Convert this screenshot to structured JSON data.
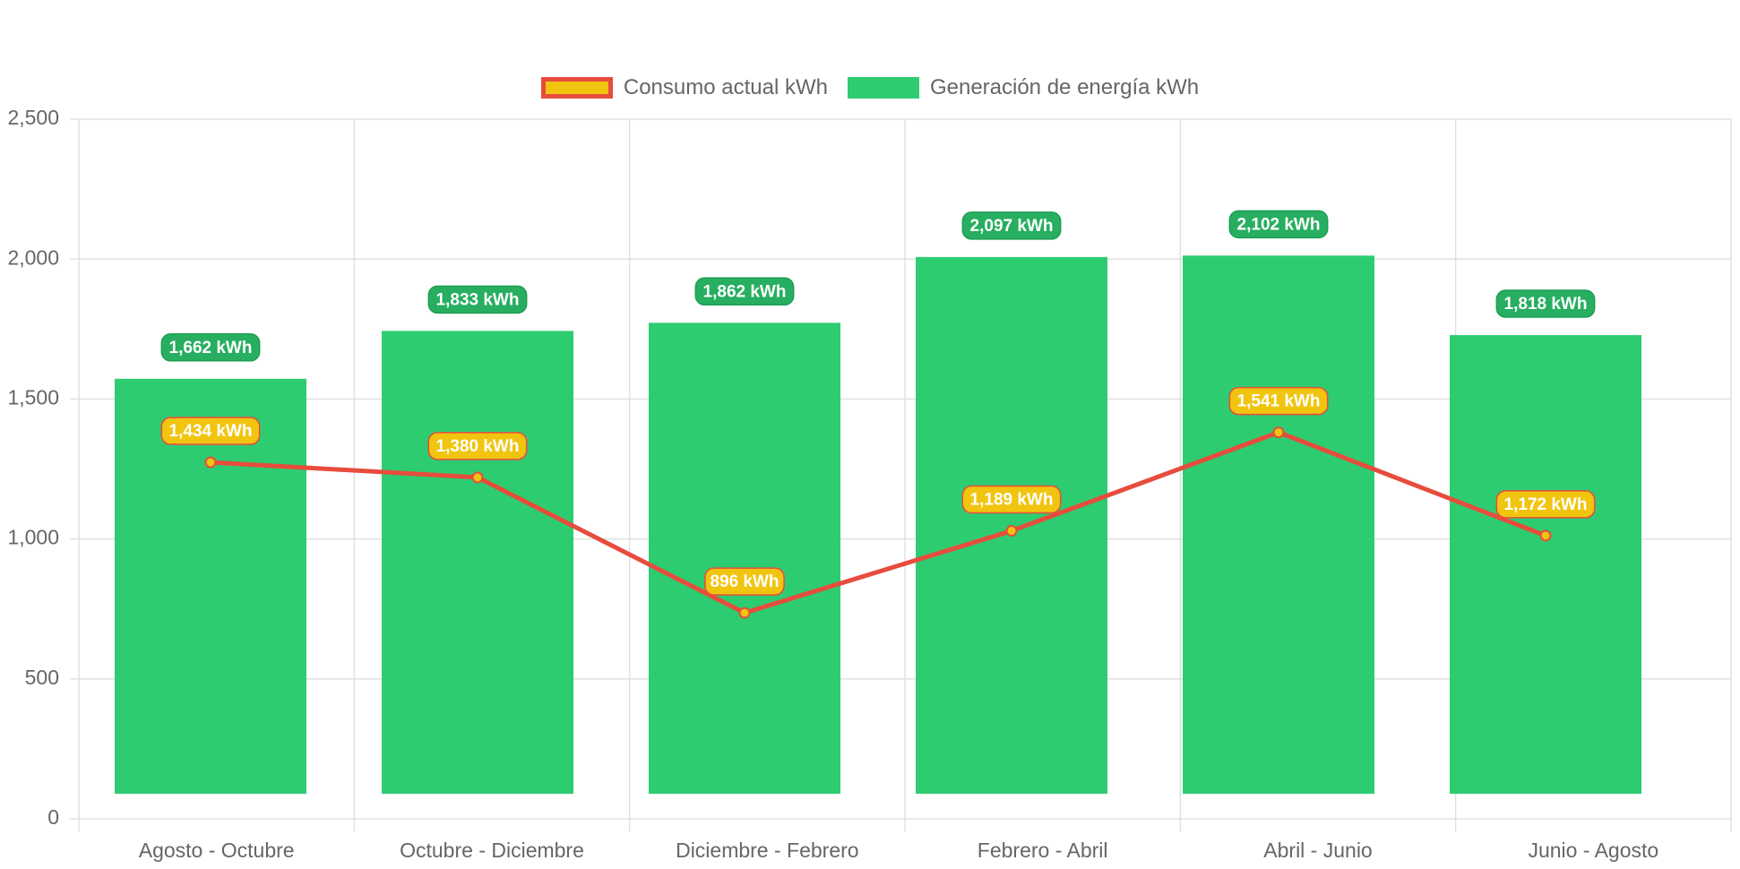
{
  "chart_data": {
    "type": "bar",
    "categories": [
      "Agosto - Octubre",
      "Octubre - Diciembre",
      "Diciembre - Febrero",
      "Febrero - Abril",
      "Abril - Junio",
      "Junio - Agosto"
    ],
    "series": [
      {
        "name": "Consumo actual kWh",
        "type": "line",
        "values": [
          1434,
          1380,
          896,
          1189,
          1541,
          1172
        ],
        "labels": [
          "1,434 kWh",
          "1,380 kWh",
          "896 kWh",
          "1,189 kWh",
          "1,541 kWh",
          "1,172 kWh"
        ],
        "color": "#e74c3c",
        "fill": "#f1c40f"
      },
      {
        "name": "Generación de energía kWh",
        "type": "bar",
        "values": [
          1662,
          1833,
          1862,
          2097,
          2102,
          1818
        ],
        "labels": [
          "1,662 kWh",
          "1,833 kWh",
          "1,862 kWh",
          "2,097 kWh",
          "2,102 kWh",
          "1,818 kWh"
        ],
        "color": "#2ecc71",
        "label_bg": "#27ae60"
      }
    ],
    "ylim": [
      0,
      2500
    ],
    "yticks": [
      "0",
      "500",
      "1,000",
      "1,500",
      "2,000",
      "2,500"
    ],
    "ytick_values": [
      0,
      500,
      1000,
      1500,
      2000,
      2500
    ],
    "grid": true,
    "legend_position": "top-center",
    "title": "",
    "xlabel": "",
    "ylabel": ""
  }
}
